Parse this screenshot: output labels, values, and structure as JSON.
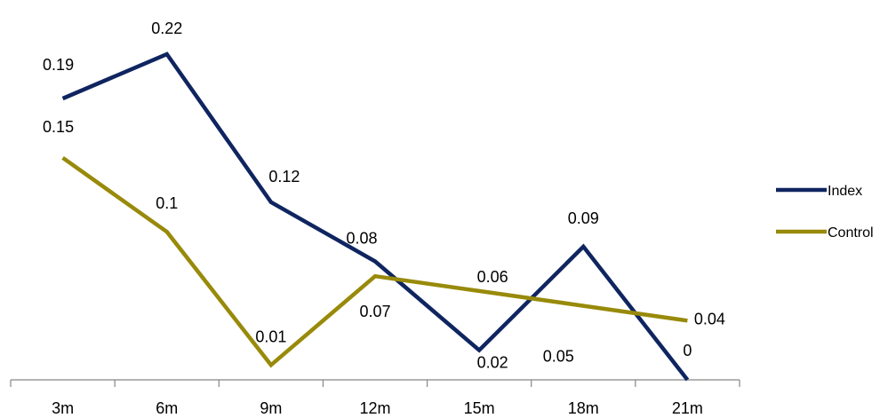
{
  "chart_data": {
    "type": "line",
    "categories": [
      "3m",
      "6m",
      "9m",
      "12m",
      "15m",
      "18m",
      "21m"
    ],
    "ylim": [
      0,
      0.22
    ],
    "grid": false,
    "legend_position": "right",
    "series": [
      {
        "name": "Index",
        "color": "#0f2560",
        "values": [
          0.19,
          0.22,
          0.12,
          0.08,
          0.02,
          0.09,
          0
        ],
        "labels": [
          "0.19",
          "0.22",
          "0.12",
          "0.08",
          "0.02",
          "0.09",
          "0"
        ]
      },
      {
        "name": "Control",
        "color": "#988a0a",
        "values": [
          0.15,
          0.1,
          0.01,
          0.07,
          0.06,
          0.05,
          0.04
        ],
        "labels": [
          "0.15",
          "0.1",
          "0.01",
          "0.07",
          "0.06",
          "0.05",
          "0.04"
        ]
      }
    ]
  }
}
